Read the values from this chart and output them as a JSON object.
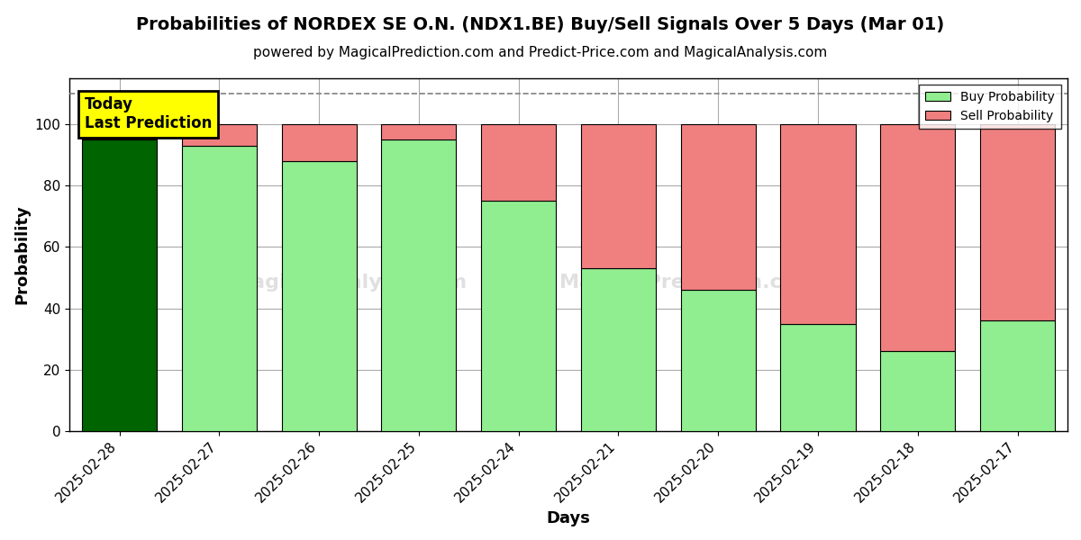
{
  "title": "Probabilities of NORDEX SE O.N. (NDX1.BE) Buy/Sell Signals Over 5 Days (Mar 01)",
  "subtitle": "powered by MagicalPrediction.com and Predict-Price.com and MagicalAnalysis.com",
  "xlabel": "Days",
  "ylabel": "Probability",
  "categories": [
    "2025-02-28",
    "2025-02-27",
    "2025-02-26",
    "2025-02-25",
    "2025-02-24",
    "2025-02-21",
    "2025-02-20",
    "2025-02-19",
    "2025-02-18",
    "2025-02-17"
  ],
  "buy_values": [
    95,
    93,
    88,
    95,
    75,
    53,
    46,
    35,
    26,
    36
  ],
  "sell_values": [
    5,
    7,
    12,
    5,
    25,
    47,
    54,
    65,
    74,
    64
  ],
  "buy_color_first": "#006400",
  "buy_color_rest": "#90EE90",
  "sell_color_first": "#FF0000",
  "sell_color_rest": "#F08080",
  "annotation_text": "Today\nLast Prediction",
  "annotation_bg": "#FFFF00",
  "annotation_border": "#000000",
  "dashed_line_y": 110,
  "ylim": [
    0,
    115
  ],
  "yticks": [
    0,
    20,
    40,
    60,
    80,
    100
  ],
  "legend_buy": "Buy Probability",
  "legend_sell": "Sell Probability",
  "title_fontsize": 14,
  "subtitle_fontsize": 11,
  "axis_label_fontsize": 13,
  "tick_fontsize": 11,
  "background_color": "#ffffff",
  "grid_color": "#aaaaaa"
}
